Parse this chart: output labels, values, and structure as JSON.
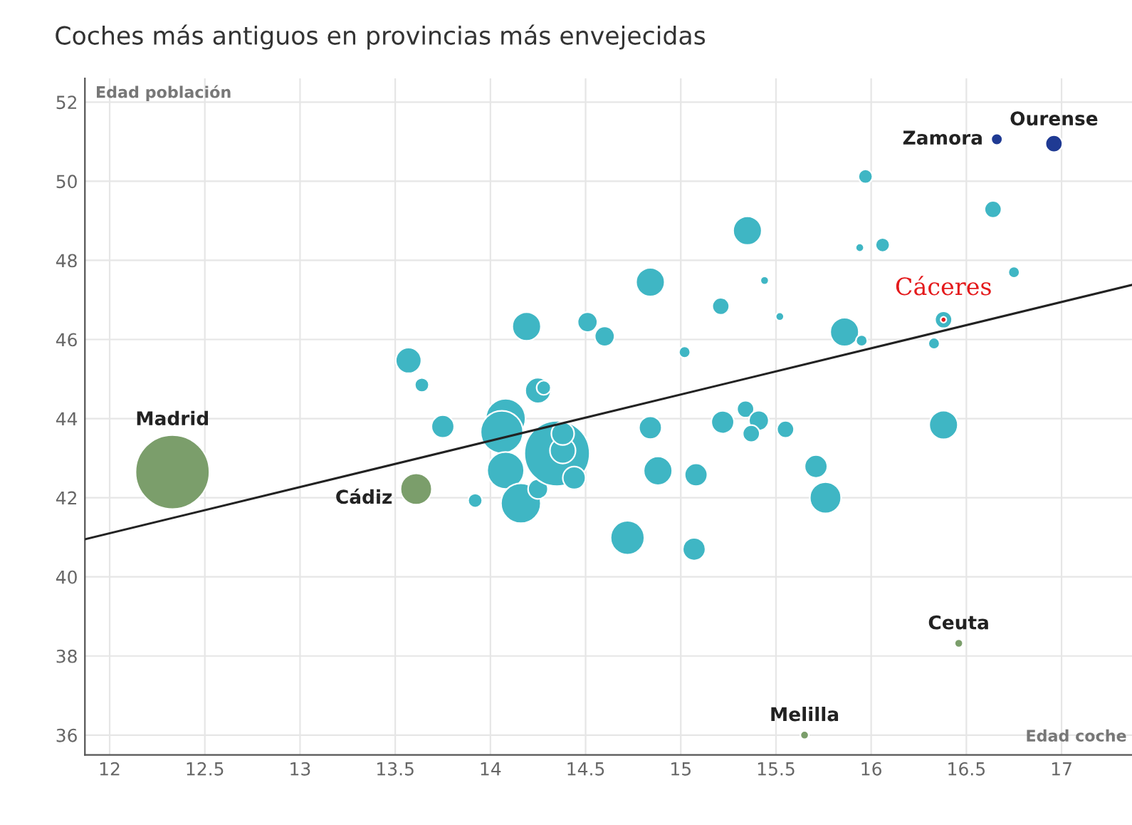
{
  "chart_data": {
    "type": "bubble",
    "title": "Coches más antiguos en provincias más envejecidas",
    "xlabel": "Edad coche",
    "ylabel": "Edad población",
    "xlim": [
      11.87,
      17.37
    ],
    "ylim": [
      35.5,
      52.6
    ],
    "xticks": [
      12,
      12.5,
      13,
      13.5,
      14,
      14.5,
      15,
      15.5,
      16,
      16.5,
      17
    ],
    "yticks": [
      36,
      38,
      40,
      42,
      44,
      46,
      48,
      50,
      52
    ],
    "grid": true,
    "legend": false,
    "marker": "circle",
    "series": [
      {
        "color": "#3fb6c4",
        "x": [
          13.57,
          13.64,
          13.75,
          13.92,
          14.08,
          14.06,
          14.08,
          14.16,
          14.25,
          14.35,
          14.38,
          14.38,
          14.44,
          14.25,
          14.28,
          14.19,
          14.51,
          14.6,
          14.84,
          15.02,
          15.21,
          15.35,
          15.44,
          15.52,
          15.86,
          15.95,
          15.97,
          15.94,
          16.06,
          16.64,
          16.75,
          16.33,
          16.38,
          16.38,
          14.84,
          15.22,
          15.34,
          15.41,
          15.37,
          15.55,
          14.88,
          15.08,
          15.71,
          15.76,
          14.72,
          15.07
        ],
        "values": [
          45.47,
          44.85,
          43.8,
          41.93,
          44.0,
          43.66,
          42.69,
          41.86,
          42.22,
          43.12,
          43.19,
          43.62,
          42.5,
          44.71,
          44.78,
          46.33,
          46.44,
          46.08,
          47.45,
          45.68,
          46.84,
          48.75,
          47.49,
          46.58,
          46.19,
          45.97,
          50.12,
          48.32,
          48.39,
          49.29,
          47.7,
          45.9,
          46.5,
          43.84,
          43.77,
          43.91,
          44.24,
          43.95,
          43.62,
          43.73,
          42.68,
          42.58,
          42.79,
          42.0,
          40.99,
          40.7
        ],
        "sizes": [
          0.12,
          0.037,
          0.095,
          0.037,
          0.29,
          0.33,
          0.25,
          0.29,
          0.072,
          0.78,
          0.12,
          0.095,
          0.095,
          0.12,
          0.037,
          0.15,
          0.072,
          0.072,
          0.15,
          0.024,
          0.053,
          0.15,
          0.013,
          0.013,
          0.15,
          0.024,
          0.037,
          0.013,
          0.037,
          0.053,
          0.024,
          0.024,
          0.053,
          0.15,
          0.095,
          0.095,
          0.053,
          0.072,
          0.053,
          0.053,
          0.15,
          0.095,
          0.095,
          0.18,
          0.21,
          0.095
        ]
      },
      {
        "color": "#7b9e6b",
        "x": [
          12.33,
          13.61,
          16.46,
          15.65
        ],
        "values": [
          42.65,
          42.22,
          38.32,
          36.0
        ],
        "sizes": [
          1,
          0.18,
          0.013,
          0.013
        ]
      },
      {
        "color": "#1f3a93",
        "x": [
          16.66,
          16.96
        ],
        "values": [
          51.06,
          50.95
        ],
        "sizes": [
          0.024,
          0.053
        ]
      },
      {
        "name": "Cáceres",
        "color": "#e41a1c",
        "x": [
          16.38
        ],
        "values": [
          46.5
        ],
        "sizes": [
          0.006
        ]
      },
      {
        "type": "line",
        "marker": "none",
        "color": "#222222",
        "x": [
          11.87,
          17.37
        ],
        "values": [
          40.95,
          47.38
        ]
      }
    ],
    "annotations": [
      {
        "text": "Madrid",
        "x": 12.33,
        "y": 42.65
      },
      {
        "text": "Cádiz",
        "x": 13.61,
        "y": 42.22
      },
      {
        "text": "Zamora",
        "x": 16.66,
        "y": 51.06
      },
      {
        "text": "Ourense",
        "x": 16.96,
        "y": 50.95
      },
      {
        "text": "Ceuta",
        "x": 16.46,
        "y": 38.32
      },
      {
        "text": "Melilla",
        "x": 15.65,
        "y": 36.0
      }
    ]
  }
}
